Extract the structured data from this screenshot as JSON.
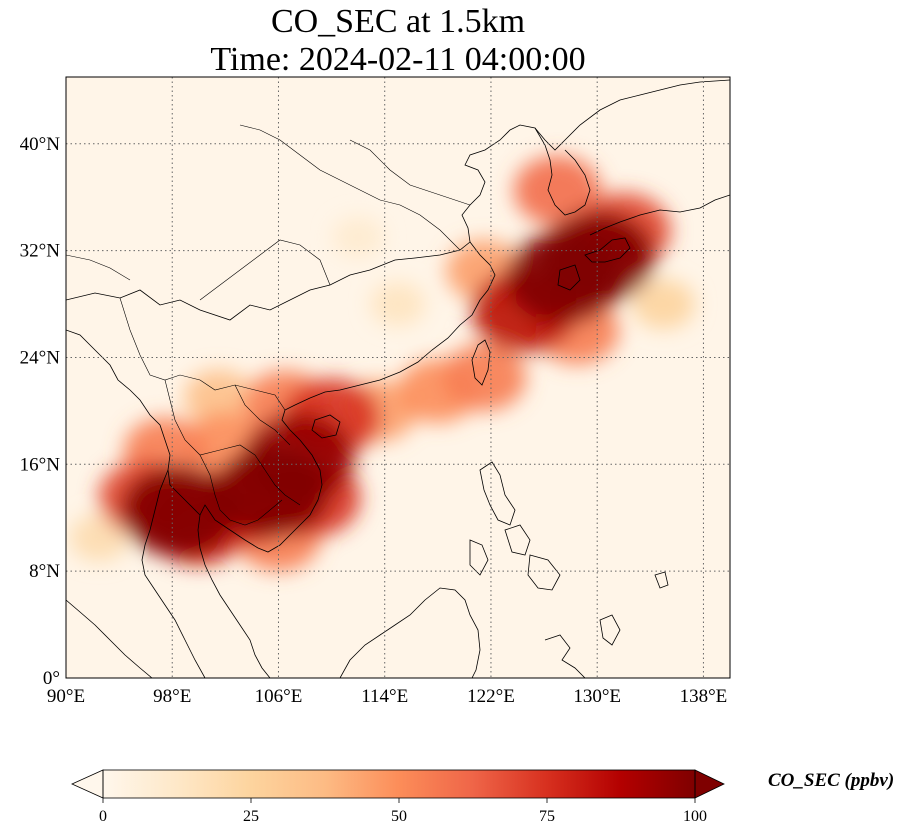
{
  "title": {
    "line1": "CO_SEC at 1.5km",
    "line2": "Time: 2024-02-11 04:00:00"
  },
  "map": {
    "variable": "CO_SEC",
    "level": "1.5km",
    "projection": "PlateCarree",
    "lon_range": [
      90,
      140
    ],
    "lat_range": [
      0,
      45
    ],
    "lon_ticks": [
      {
        "value": 90,
        "label": "90°E"
      },
      {
        "value": 98,
        "label": "98°E"
      },
      {
        "value": 106,
        "label": "106°E"
      },
      {
        "value": 114,
        "label": "114°E"
      },
      {
        "value": 122,
        "label": "122°E"
      },
      {
        "value": 130,
        "label": "130°E"
      },
      {
        "value": 138,
        "label": "138°E"
      }
    ],
    "lat_ticks": [
      {
        "value": 0,
        "label": "0°"
      },
      {
        "value": 8,
        "label": "8°N"
      },
      {
        "value": 16,
        "label": "16°N"
      },
      {
        "value": 24,
        "label": "24°N"
      },
      {
        "value": 32,
        "label": "32°N"
      },
      {
        "value": 40,
        "label": "40°N"
      }
    ],
    "gridlines": true,
    "gridline_style": "dotted",
    "coastlines": true,
    "borders": true,
    "plumes": [
      {
        "lon": 98.5,
        "lat": 12.5,
        "value": 100
      },
      {
        "lon": 96.0,
        "lat": 13.5,
        "value": 70
      },
      {
        "lon": 100.0,
        "lat": 11.5,
        "value": 80
      },
      {
        "lon": 97.5,
        "lat": 17.0,
        "value": 55
      },
      {
        "lon": 105.5,
        "lat": 14.0,
        "value": 100
      },
      {
        "lon": 103.5,
        "lat": 13.0,
        "value": 80
      },
      {
        "lon": 102.0,
        "lat": 17.5,
        "value": 50
      },
      {
        "lon": 107.5,
        "lat": 16.5,
        "value": 95
      },
      {
        "lon": 108.5,
        "lat": 13.5,
        "value": 75
      },
      {
        "lon": 106.0,
        "lat": 10.5,
        "value": 55
      },
      {
        "lon": 110.0,
        "lat": 19.5,
        "value": 75
      },
      {
        "lon": 106.5,
        "lat": 20.5,
        "value": 55
      },
      {
        "lon": 101.5,
        "lat": 21.0,
        "value": 35
      },
      {
        "lon": 113.5,
        "lat": 20.0,
        "value": 45
      },
      {
        "lon": 118.0,
        "lat": 21.5,
        "value": 50
      },
      {
        "lon": 121.5,
        "lat": 22.5,
        "value": 55
      },
      {
        "lon": 124.5,
        "lat": 27.5,
        "value": 85
      },
      {
        "lon": 127.5,
        "lat": 30.0,
        "value": 100
      },
      {
        "lon": 130.0,
        "lat": 31.5,
        "value": 100
      },
      {
        "lon": 132.0,
        "lat": 33.5,
        "value": 70
      },
      {
        "lon": 128.5,
        "lat": 26.0,
        "value": 55
      },
      {
        "lon": 127.0,
        "lat": 36.5,
        "value": 60
      },
      {
        "lon": 121.5,
        "lat": 30.5,
        "value": 45
      },
      {
        "lon": 115.0,
        "lat": 28.0,
        "value": 15
      },
      {
        "lon": 112.0,
        "lat": 33.0,
        "value": 10
      },
      {
        "lon": 135.0,
        "lat": 28.0,
        "value": 25
      },
      {
        "lon": 92.5,
        "lat": 10.5,
        "value": 20
      }
    ]
  },
  "colorbar": {
    "label": "CO_SEC (ppbv)",
    "min": 0,
    "max": 100,
    "extend": "both",
    "colormap": "OrRd",
    "ticks": [
      {
        "value": 0,
        "label": "0"
      },
      {
        "value": 25,
        "label": "25"
      },
      {
        "value": 50,
        "label": "50"
      },
      {
        "value": 75,
        "label": "75"
      },
      {
        "value": 100,
        "label": "100"
      }
    ],
    "colors": [
      "#fff7ec",
      "#fee8c8",
      "#fdd49e",
      "#fdbb84",
      "#fc8d59",
      "#ef6548",
      "#d7301f",
      "#b30000",
      "#7f0000"
    ]
  }
}
